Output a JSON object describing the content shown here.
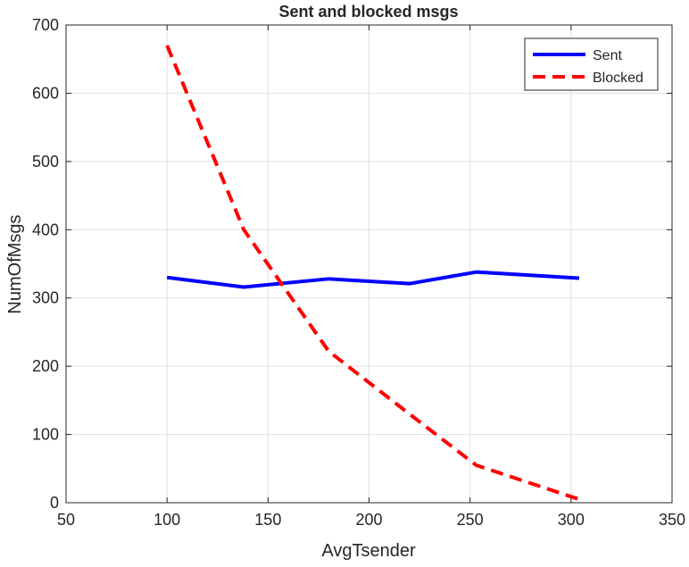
{
  "chart_data": {
    "type": "line",
    "title": "Sent and blocked msgs",
    "xlabel": "AvgTsender",
    "ylabel": "NumOfMsgs",
    "xlim": [
      50,
      350
    ],
    "ylim": [
      0,
      700
    ],
    "xticks": [
      50,
      100,
      150,
      200,
      250,
      300,
      350
    ],
    "yticks": [
      0,
      100,
      200,
      300,
      400,
      500,
      600,
      700
    ],
    "grid": true,
    "legend": "top-right",
    "series": [
      {
        "name": "Sent",
        "color": "#0000ff",
        "style": "solid",
        "x": [
          100,
          138,
          180,
          220,
          253,
          304
        ],
        "y": [
          330,
          316,
          328,
          321,
          338,
          329
        ]
      },
      {
        "name": "Blocked",
        "color": "#ff0000",
        "style": "dashed",
        "x": [
          100,
          138,
          180,
          220,
          253,
          304
        ],
        "y": [
          670,
          400,
          222,
          130,
          55,
          5
        ]
      }
    ]
  }
}
